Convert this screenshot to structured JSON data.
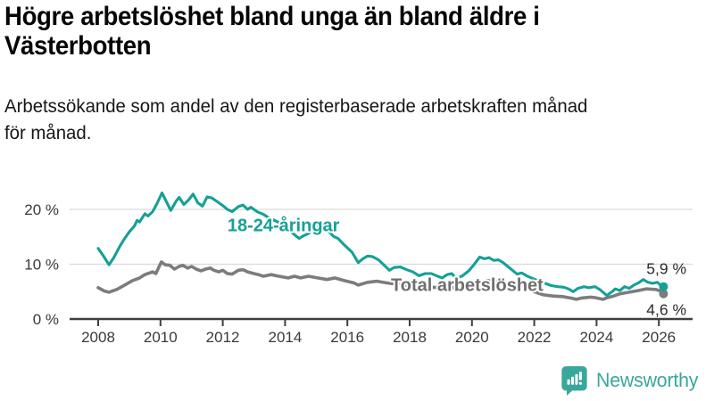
{
  "header": {
    "title": "Högre arbetslöshet bland unga än bland äldre i Västerbotten",
    "title_lines": [
      "Högre arbetslöshet bland unga än bland äldre i",
      "Västerbotten"
    ],
    "subtitle": "Arbetssökande som andel av den registerbaserade arbetskraften månad för månad.",
    "subtitle_lines": [
      "Arbetssökande som andel av den registerbaserade arbetskraften månad",
      "för månad."
    ]
  },
  "footer": {
    "brand": "Newsworthy",
    "brand_color": "#3aa79b",
    "logo_icon": "speech-bubble-bar-chart-icon"
  },
  "colors": {
    "youth_line": "#15a096",
    "total_line": "#7c7c7c",
    "total_label": "#6f6f6f",
    "gridline": "#d9d9d9",
    "axis": "#3f3f3f",
    "tick_label": "#3a3a3a",
    "end_label": "#2b2b2b"
  },
  "chart_data": {
    "type": "line",
    "title": "Högre arbetslöshet bland unga än bland äldre i Västerbotten",
    "subtitle": "Arbetssökande som andel av den registerbaserade arbetskraften månad för månad.",
    "xlabel": "",
    "ylabel": "",
    "x_range": [
      2007.75,
      2026.4
    ],
    "ylim": [
      0,
      24
    ],
    "grid": "horizontal",
    "y_ticks": [
      {
        "value": 0,
        "label": "0 %"
      },
      {
        "value": 10,
        "label": "10 %"
      },
      {
        "value": 20,
        "label": "20 %"
      }
    ],
    "x_ticks": [
      {
        "value": 2008,
        "label": "2008"
      },
      {
        "value": 2010,
        "label": "2010"
      },
      {
        "value": 2012,
        "label": "2012"
      },
      {
        "value": 2014,
        "label": "2014"
      },
      {
        "value": 2016,
        "label": "2016"
      },
      {
        "value": 2018,
        "label": "2018"
      },
      {
        "value": 2020,
        "label": "2020"
      },
      {
        "value": 2022,
        "label": "2022"
      },
      {
        "value": 2024,
        "label": "2024"
      },
      {
        "value": 2026,
        "label": "2026"
      }
    ],
    "series": [
      {
        "name": "total",
        "label": "Total arbetslöshet",
        "color": "#7c7c7c",
        "label_color": "#6f6f6f",
        "line_width": 3.6,
        "end_value": 4.6,
        "end_label": "4,6 %",
        "end_label_side": "below",
        "label_anchor": {
          "x": 2017.4,
          "y": 5.15
        },
        "points": [
          [
            2008.0,
            5.7
          ],
          [
            2008.2,
            5.1
          ],
          [
            2008.35,
            4.9
          ],
          [
            2008.6,
            5.4
          ],
          [
            2008.85,
            6.2
          ],
          [
            2009.1,
            7.0
          ],
          [
            2009.33,
            7.5
          ],
          [
            2009.5,
            8.1
          ],
          [
            2009.75,
            8.6
          ],
          [
            2009.85,
            8.3
          ],
          [
            2010.03,
            10.4
          ],
          [
            2010.15,
            9.9
          ],
          [
            2010.3,
            9.8
          ],
          [
            2010.45,
            9.1
          ],
          [
            2010.6,
            9.6
          ],
          [
            2010.72,
            9.8
          ],
          [
            2010.87,
            9.3
          ],
          [
            2011.0,
            9.6
          ],
          [
            2011.15,
            9.1
          ],
          [
            2011.3,
            8.8
          ],
          [
            2011.45,
            9.1
          ],
          [
            2011.6,
            9.3
          ],
          [
            2011.72,
            8.9
          ],
          [
            2011.87,
            8.6
          ],
          [
            2012.0,
            8.9
          ],
          [
            2012.15,
            8.3
          ],
          [
            2012.3,
            8.2
          ],
          [
            2012.5,
            8.9
          ],
          [
            2012.65,
            9.0
          ],
          [
            2012.8,
            8.6
          ],
          [
            2013.0,
            8.3
          ],
          [
            2013.15,
            8.1
          ],
          [
            2013.3,
            7.8
          ],
          [
            2013.55,
            8.1
          ],
          [
            2013.8,
            7.8
          ],
          [
            2014.1,
            7.5
          ],
          [
            2014.3,
            7.8
          ],
          [
            2014.5,
            7.5
          ],
          [
            2014.75,
            7.8
          ],
          [
            2015.05,
            7.5
          ],
          [
            2015.35,
            7.2
          ],
          [
            2015.6,
            7.5
          ],
          [
            2015.9,
            7.0
          ],
          [
            2016.2,
            6.6
          ],
          [
            2016.35,
            6.2
          ],
          [
            2016.65,
            6.7
          ],
          [
            2016.95,
            6.9
          ],
          [
            2017.25,
            6.6
          ],
          [
            2017.5,
            6.4
          ],
          [
            2017.8,
            6.3
          ],
          [
            2018.0,
            6.1
          ],
          [
            2018.3,
            5.8
          ],
          [
            2018.6,
            5.9
          ],
          [
            2018.9,
            5.7
          ],
          [
            2019.2,
            5.9
          ],
          [
            2019.5,
            5.6
          ],
          [
            2019.9,
            5.8
          ],
          [
            2020.2,
            6.5
          ],
          [
            2020.5,
            7.0
          ],
          [
            2020.8,
            6.8
          ],
          [
            2021.0,
            6.6
          ],
          [
            2021.3,
            6.2
          ],
          [
            2021.6,
            5.8
          ],
          [
            2021.9,
            5.2
          ],
          [
            2022.1,
            4.8
          ],
          [
            2022.3,
            4.4
          ],
          [
            2022.6,
            4.2
          ],
          [
            2022.9,
            4.1
          ],
          [
            2023.2,
            3.8
          ],
          [
            2023.35,
            3.6
          ],
          [
            2023.5,
            3.8
          ],
          [
            2023.8,
            4.0
          ],
          [
            2023.95,
            3.9
          ],
          [
            2024.2,
            3.6
          ],
          [
            2024.35,
            3.9
          ],
          [
            2024.55,
            4.2
          ],
          [
            2024.75,
            4.6
          ],
          [
            2025.05,
            4.9
          ],
          [
            2025.35,
            5.2
          ],
          [
            2025.6,
            5.5
          ],
          [
            2025.9,
            5.4
          ],
          [
            2026.05,
            5.1
          ],
          [
            2026.15,
            4.6
          ]
        ]
      },
      {
        "name": "18-24",
        "label": "18-24-åringar",
        "color": "#15a096",
        "label_color": "#15a096",
        "line_width": 3.1,
        "end_value": 5.9,
        "end_label": "5,9 %",
        "end_label_side": "above",
        "label_anchor": {
          "x": 2012.15,
          "y": 16.0
        },
        "points": [
          [
            2008.0,
            12.9
          ],
          [
            2008.17,
            11.5
          ],
          [
            2008.35,
            9.9
          ],
          [
            2008.5,
            11.2
          ],
          [
            2008.7,
            13.3
          ],
          [
            2008.85,
            14.7
          ],
          [
            2009.0,
            15.9
          ],
          [
            2009.17,
            17.0
          ],
          [
            2009.25,
            18.0
          ],
          [
            2009.33,
            17.7
          ],
          [
            2009.5,
            19.2
          ],
          [
            2009.6,
            18.8
          ],
          [
            2009.75,
            19.6
          ],
          [
            2009.9,
            21.2
          ],
          [
            2010.05,
            23.0
          ],
          [
            2010.2,
            21.3
          ],
          [
            2010.33,
            19.8
          ],
          [
            2010.5,
            21.5
          ],
          [
            2010.6,
            22.2
          ],
          [
            2010.75,
            20.9
          ],
          [
            2010.9,
            21.7
          ],
          [
            2011.05,
            22.8
          ],
          [
            2011.2,
            21.2
          ],
          [
            2011.35,
            20.6
          ],
          [
            2011.5,
            22.3
          ],
          [
            2011.65,
            22.1
          ],
          [
            2011.85,
            21.3
          ],
          [
            2012.0,
            20.7
          ],
          [
            2012.15,
            20.0
          ],
          [
            2012.3,
            19.6
          ],
          [
            2012.5,
            20.5
          ],
          [
            2012.65,
            20.8
          ],
          [
            2012.8,
            20.0
          ],
          [
            2012.9,
            20.4
          ],
          [
            2013.1,
            19.6
          ],
          [
            2013.3,
            19.1
          ],
          [
            2013.5,
            18.4
          ],
          [
            2013.7,
            17.9
          ],
          [
            2013.9,
            17.3
          ],
          [
            2014.1,
            16.4
          ],
          [
            2014.3,
            15.4
          ],
          [
            2014.45,
            14.7
          ],
          [
            2014.6,
            15.2
          ],
          [
            2014.75,
            15.6
          ],
          [
            2014.9,
            16.2
          ],
          [
            2015.05,
            16.8
          ],
          [
            2015.2,
            16.5
          ],
          [
            2015.4,
            16.0
          ],
          [
            2015.55,
            15.1
          ],
          [
            2015.7,
            14.7
          ],
          [
            2015.85,
            13.8
          ],
          [
            2016.0,
            13.0
          ],
          [
            2016.15,
            12.2
          ],
          [
            2016.35,
            10.3
          ],
          [
            2016.5,
            11.0
          ],
          [
            2016.65,
            11.5
          ],
          [
            2016.8,
            11.4
          ],
          [
            2017.0,
            10.8
          ],
          [
            2017.15,
            10.0
          ],
          [
            2017.35,
            8.9
          ],
          [
            2017.5,
            9.4
          ],
          [
            2017.7,
            9.5
          ],
          [
            2017.9,
            9.0
          ],
          [
            2018.1,
            8.6
          ],
          [
            2018.3,
            7.9
          ],
          [
            2018.5,
            8.3
          ],
          [
            2018.7,
            8.3
          ],
          [
            2018.9,
            7.8
          ],
          [
            2019.05,
            7.5
          ],
          [
            2019.2,
            8.1
          ],
          [
            2019.35,
            8.3
          ],
          [
            2019.5,
            7.4
          ],
          [
            2019.7,
            7.9
          ],
          [
            2019.9,
            8.8
          ],
          [
            2020.05,
            9.8
          ],
          [
            2020.25,
            11.3
          ],
          [
            2020.4,
            11.0
          ],
          [
            2020.55,
            11.2
          ],
          [
            2020.7,
            10.7
          ],
          [
            2020.85,
            10.8
          ],
          [
            2021.0,
            10.3
          ],
          [
            2021.15,
            9.6
          ],
          [
            2021.3,
            8.9
          ],
          [
            2021.45,
            8.2
          ],
          [
            2021.6,
            8.4
          ],
          [
            2021.75,
            7.9
          ],
          [
            2021.95,
            7.4
          ],
          [
            2022.15,
            6.9
          ],
          [
            2022.35,
            6.5
          ],
          [
            2022.55,
            6.1
          ],
          [
            2022.75,
            5.9
          ],
          [
            2022.95,
            5.8
          ],
          [
            2023.1,
            5.5
          ],
          [
            2023.25,
            5.0
          ],
          [
            2023.4,
            5.6
          ],
          [
            2023.6,
            5.9
          ],
          [
            2023.75,
            5.7
          ],
          [
            2023.95,
            5.9
          ],
          [
            2024.1,
            5.4
          ],
          [
            2024.33,
            4.3
          ],
          [
            2024.5,
            5.0
          ],
          [
            2024.6,
            5.5
          ],
          [
            2024.75,
            5.2
          ],
          [
            2024.9,
            5.9
          ],
          [
            2025.05,
            5.6
          ],
          [
            2025.2,
            6.2
          ],
          [
            2025.35,
            6.6
          ],
          [
            2025.5,
            7.2
          ],
          [
            2025.65,
            6.7
          ],
          [
            2025.8,
            6.5
          ],
          [
            2025.95,
            6.7
          ],
          [
            2026.05,
            6.2
          ],
          [
            2026.15,
            5.9
          ]
        ]
      }
    ]
  }
}
